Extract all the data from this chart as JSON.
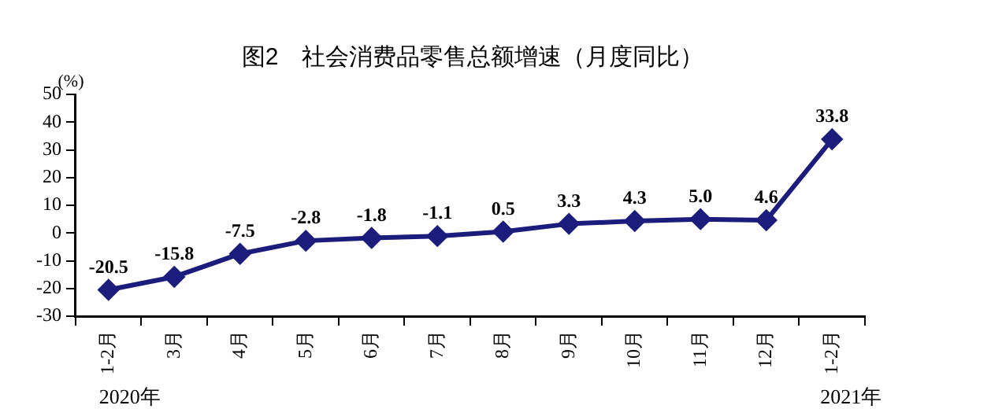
{
  "chart_data": {
    "type": "line",
    "title": "图2　社会消费品零售总额增速（月度同比）",
    "ylabel": "(%)",
    "categories": [
      "1-2月",
      "3月",
      "4月",
      "5月",
      "6月",
      "7月",
      "8月",
      "9月",
      "10月",
      "11月",
      "12月",
      "1-2月"
    ],
    "series": [
      {
        "color": "#1c1c7c",
        "values": [
          -20.5,
          -15.8,
          -7.5,
          -2.8,
          -1.8,
          -1.1,
          0.5,
          3.3,
          4.3,
          5.0,
          4.6,
          33.8
        ]
      }
    ],
    "value_labels": [
      "-20.5",
      "-15.8",
      "-7.5",
      "-2.8",
      "-1.8",
      "-1.1",
      "0.5",
      "3.3",
      "4.3",
      "5.0",
      "4.6",
      "33.8"
    ],
    "ylim": [
      -30,
      50
    ],
    "yticks": [
      -30,
      -20,
      -10,
      0,
      10,
      20,
      30,
      40,
      50
    ],
    "annotations": [
      "2020年",
      "2021年"
    ],
    "grid": false,
    "legend": false,
    "marker": "diamond",
    "line_style": "solid"
  }
}
